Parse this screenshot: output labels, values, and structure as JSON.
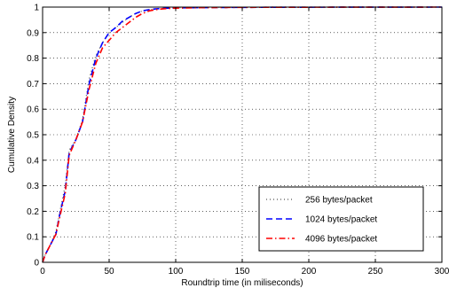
{
  "chart_data": {
    "type": "line",
    "title": "",
    "xlabel": "Roundtrip time (in miliseconds)",
    "ylabel": "Cumulative Density",
    "xlim": [
      0,
      300
    ],
    "ylim": [
      0,
      1
    ],
    "x_ticks": [
      0,
      50,
      100,
      150,
      200,
      250,
      300
    ],
    "y_ticks": [
      0,
      0.1,
      0.2,
      0.3,
      0.4,
      0.5,
      0.6,
      0.7,
      0.8,
      0.9,
      1
    ],
    "x_tick_labels": [
      "0",
      "50",
      "100",
      "150",
      "200",
      "250",
      "300"
    ],
    "y_tick_labels": [
      "0",
      "0.1",
      "0.2",
      "0.3",
      "0.4",
      "0.5",
      "0.6",
      "0.7",
      "0.8",
      "0.9",
      "1"
    ],
    "grid": true,
    "legend_position": "bottom-right",
    "series": [
      {
        "name": "256 bytes/packet",
        "color": "#555555",
        "style": "dotted",
        "x": [
          0,
          2,
          5,
          10,
          13,
          17,
          20,
          25,
          30,
          35,
          40,
          45,
          50,
          55,
          60,
          65,
          70,
          75,
          80,
          85,
          90,
          100,
          120,
          150,
          200,
          250,
          300
        ],
        "y": [
          0,
          0.03,
          0.06,
          0.12,
          0.2,
          0.3,
          0.44,
          0.48,
          0.56,
          0.72,
          0.81,
          0.86,
          0.9,
          0.92,
          0.94,
          0.96,
          0.975,
          0.985,
          0.99,
          0.993,
          0.995,
          0.997,
          0.998,
          0.999,
          0.9995,
          0.9998,
          1.0
        ]
      },
      {
        "name": "1024 bytes/packet",
        "color": "#0000ff",
        "style": "dashed",
        "x": [
          0,
          2,
          5,
          10,
          13,
          17,
          20,
          25,
          30,
          35,
          40,
          45,
          50,
          55,
          60,
          65,
          70,
          75,
          80,
          85,
          90,
          100,
          120,
          150,
          200,
          250,
          300
        ],
        "y": [
          0,
          0.03,
          0.06,
          0.11,
          0.19,
          0.28,
          0.43,
          0.48,
          0.55,
          0.7,
          0.8,
          0.86,
          0.9,
          0.92,
          0.945,
          0.96,
          0.975,
          0.985,
          0.99,
          0.993,
          0.995,
          0.997,
          0.998,
          0.999,
          0.9995,
          0.9998,
          1.0
        ]
      },
      {
        "name": "4096 bytes/packet",
        "color": "#ff0000",
        "style": "dashdot",
        "x": [
          0,
          2,
          5,
          10,
          13,
          17,
          20,
          25,
          30,
          35,
          40,
          45,
          50,
          55,
          60,
          65,
          70,
          75,
          80,
          85,
          90,
          100,
          120,
          150,
          200,
          250,
          300
        ],
        "y": [
          0,
          0.03,
          0.06,
          0.11,
          0.18,
          0.27,
          0.42,
          0.48,
          0.55,
          0.68,
          0.78,
          0.84,
          0.87,
          0.9,
          0.92,
          0.94,
          0.96,
          0.975,
          0.985,
          0.99,
          0.993,
          0.996,
          0.998,
          0.999,
          0.9995,
          0.9998,
          1.0
        ]
      }
    ]
  }
}
